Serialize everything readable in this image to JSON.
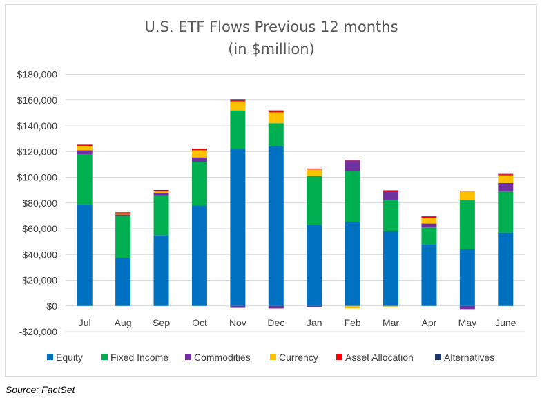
{
  "chart_data": {
    "type": "bar",
    "stacked": true,
    "title": "U.S. ETF Flows Previous 12 months",
    "subtitle": "(in $million)",
    "categories": [
      "Jul",
      "Aug",
      "Sep",
      "Oct",
      "Nov",
      "Dec",
      "Jan",
      "Feb",
      "Mar",
      "Apr",
      "May",
      "June"
    ],
    "ylim": [
      -20000,
      180000
    ],
    "yticks": [
      -20000,
      0,
      20000,
      40000,
      60000,
      80000,
      100000,
      120000,
      140000,
      160000,
      180000
    ],
    "ytick_labels": [
      "-$20,000",
      "$0",
      "$20,000",
      "$40,000",
      "$60,000",
      "$80,000",
      "$100,000",
      "$120,000",
      "$140,000",
      "$160,000",
      "$180,000"
    ],
    "grid": true,
    "legend_position": "bottom",
    "series": [
      {
        "name": "Equity",
        "color": "#0070c0",
        "values": [
          79000,
          37000,
          55000,
          78000,
          122000,
          124000,
          63000,
          65000,
          58000,
          48000,
          44000,
          57000
        ]
      },
      {
        "name": "Fixed Income",
        "color": "#00b050",
        "values": [
          39000,
          33000,
          31000,
          34000,
          30000,
          18000,
          38000,
          40000,
          24000,
          13000,
          38000,
          32000
        ]
      },
      {
        "name": "Commodities",
        "color": "#7030a0",
        "values": [
          3000,
          1000,
          1500,
          3500,
          -1500,
          -2000,
          -1000,
          8000,
          7000,
          3000,
          -2500,
          6500
        ]
      },
      {
        "name": "Currency",
        "color": "#ffc000",
        "values": [
          3000,
          1000,
          1500,
          5500,
          7000,
          8500,
          5000,
          -2000,
          -1000,
          4500,
          7000,
          6000
        ]
      },
      {
        "name": "Asset Allocation",
        "color": "#ff0000",
        "values": [
          1000,
          500,
          800,
          1000,
          1000,
          1200,
          500,
          300,
          500,
          1000,
          200,
          800
        ]
      },
      {
        "name": "Alternatives",
        "color": "#203864",
        "values": [
          300,
          300,
          300,
          300,
          300,
          300,
          300,
          300,
          300,
          500,
          200,
          300
        ]
      }
    ]
  },
  "footer": {
    "source": "Source: FactSet"
  }
}
